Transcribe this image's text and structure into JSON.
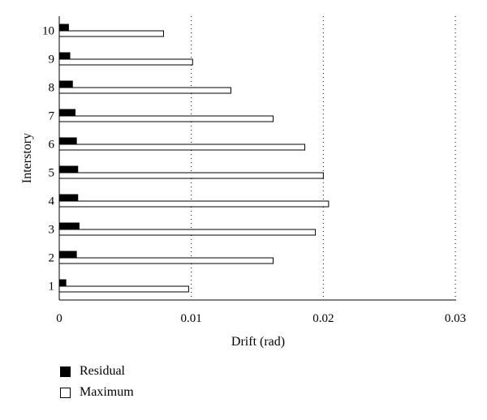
{
  "chart_data": {
    "type": "bar",
    "orientation": "horizontal",
    "categories": [
      "1",
      "2",
      "3",
      "4",
      "5",
      "6",
      "7",
      "8",
      "9",
      "10"
    ],
    "series": [
      {
        "name": "Residual",
        "color": "#000000",
        "values": [
          0.0005,
          0.0013,
          0.0015,
          0.0014,
          0.0014,
          0.0013,
          0.0012,
          0.001,
          0.0008,
          0.0007
        ]
      },
      {
        "name": "Maximum",
        "color": "#ffffff",
        "values": [
          0.0098,
          0.0162,
          0.0194,
          0.0204,
          0.02,
          0.0186,
          0.0162,
          0.013,
          0.0101,
          0.0079
        ]
      }
    ],
    "xlabel": "Drift (rad)",
    "ylabel": "Interstory",
    "xlim": [
      0,
      0.03
    ],
    "xticks": [
      "0",
      "0.01",
      "0.02",
      "0.03"
    ],
    "xtick_values": [
      0,
      0.01,
      0.02,
      0.03
    ],
    "grid": "vertical dotted",
    "legend_position": "bottom-left"
  }
}
